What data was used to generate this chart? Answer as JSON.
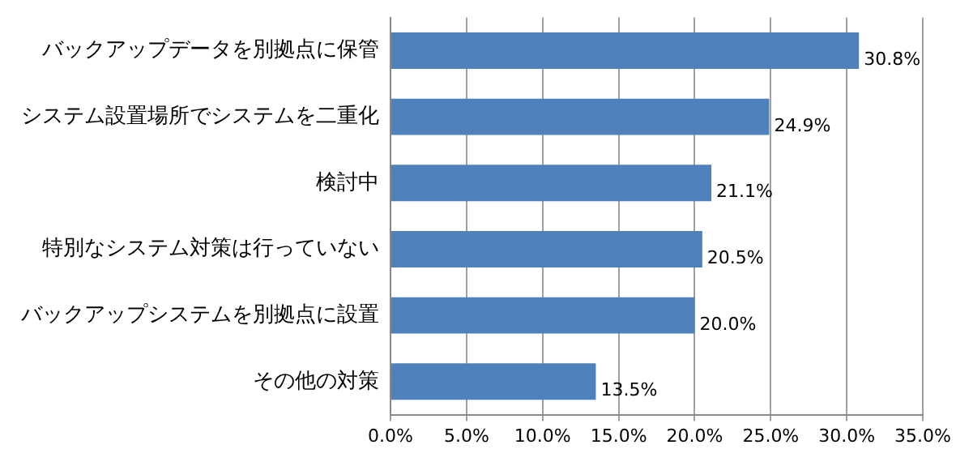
{
  "chart_data": {
    "type": "bar",
    "orientation": "horizontal",
    "categories": [
      "バックアップデータを別拠点に保管",
      "システム設置場所でシステムを二重化",
      "検討中",
      "特別なシステム対策は行っていない",
      "バックアップシステムを別拠点に設置",
      "その他の対策"
    ],
    "values": [
      30.8,
      24.9,
      21.1,
      20.5,
      20.0,
      13.5
    ],
    "value_labels": [
      "30.8%",
      "24.9%",
      "21.1%",
      "20.5%",
      "20.0%",
      "13.5%"
    ],
    "color": "#4f81bd",
    "xlim": [
      0,
      35
    ],
    "xticks": [
      {
        "value": 0,
        "label": "0.0%"
      },
      {
        "value": 5,
        "label": "5.0%"
      },
      {
        "value": 10,
        "label": "10.0%"
      },
      {
        "value": 15,
        "label": "15.0%"
      },
      {
        "value": 20,
        "label": "20.0%"
      },
      {
        "value": 25,
        "label": "25.0%"
      },
      {
        "value": 30,
        "label": "30.0%"
      },
      {
        "value": 35,
        "label": "35.0%"
      }
    ],
    "grid": "x"
  }
}
